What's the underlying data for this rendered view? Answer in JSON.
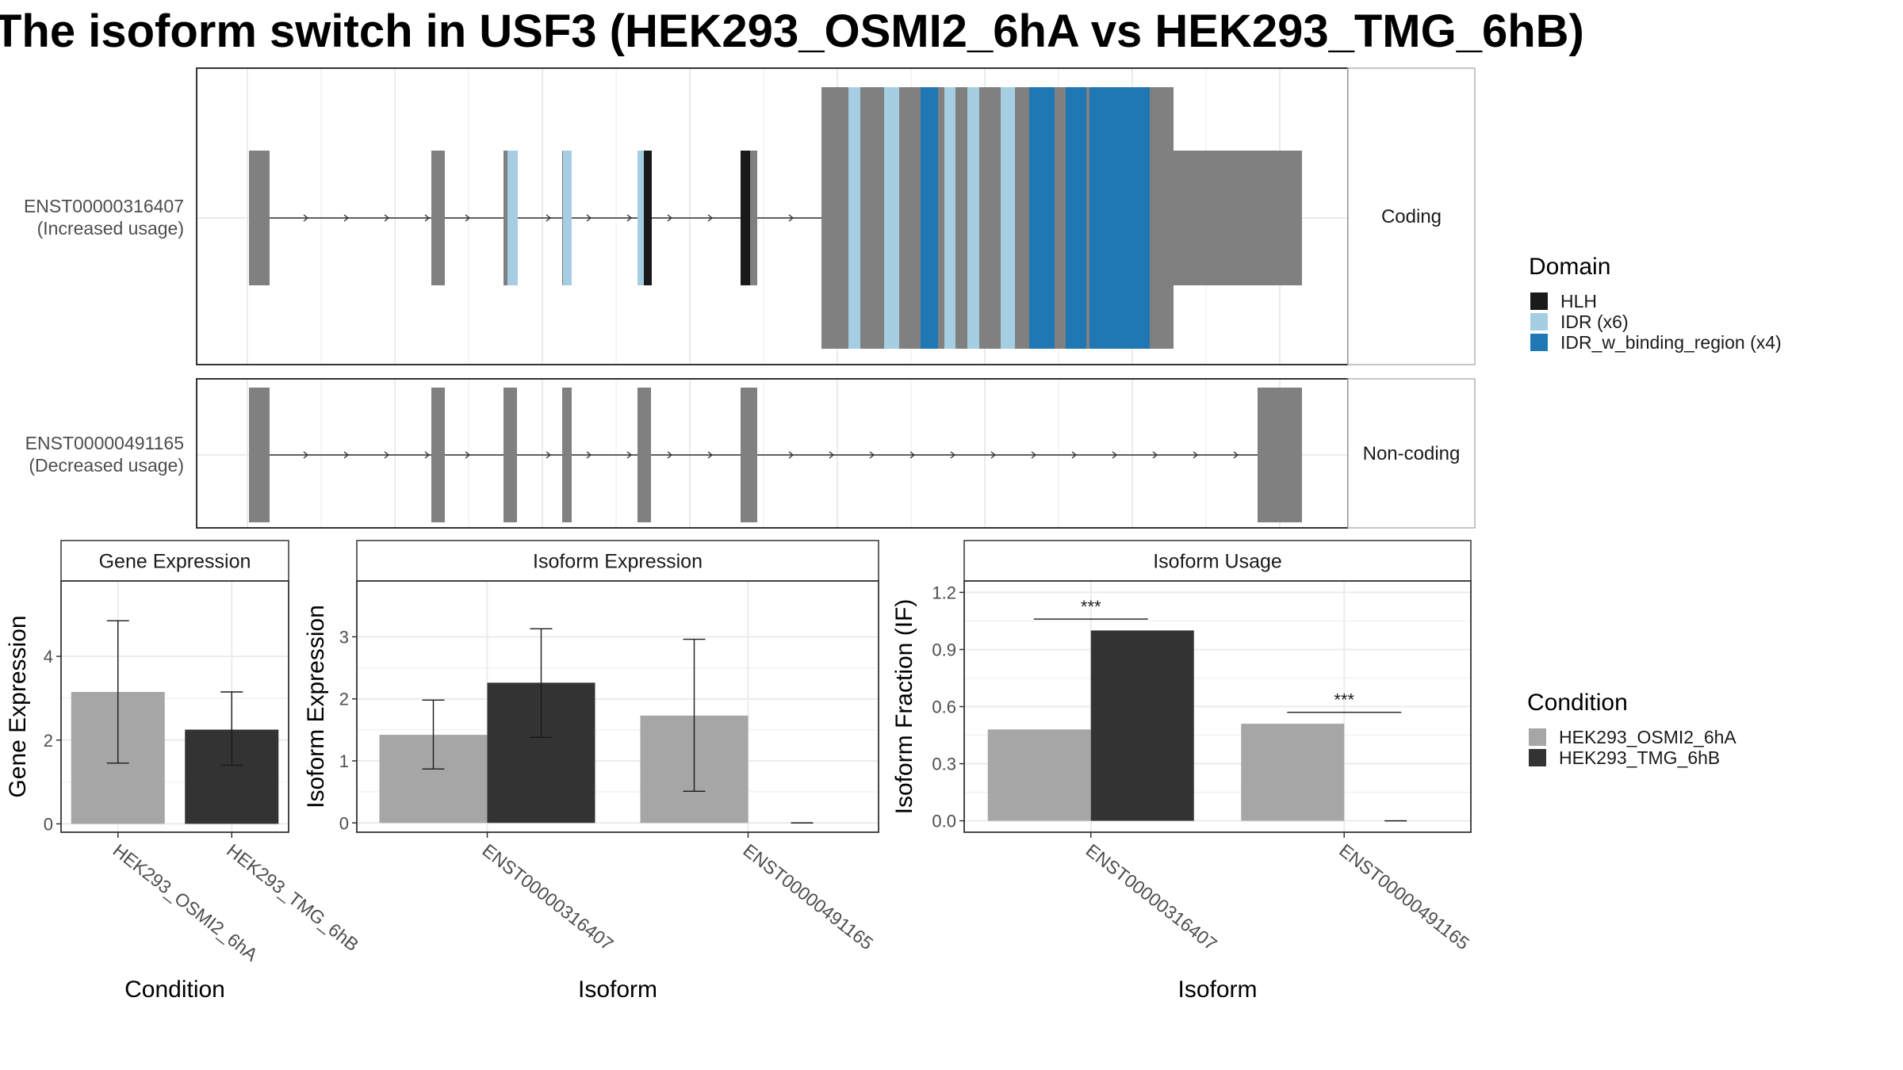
{
  "title": "The isoform switch in USF3 (HEK293_OSMI2_6hA vs HEK293_TMG_6hB)",
  "colors": {
    "exon": "#808080",
    "HLH": "#1a1a1a",
    "IDR": "#a6cee3",
    "IDR_w_binding_region": "#1f78b4",
    "HEK293_OSMI2_6hA": "#a6a6a6",
    "HEK293_TMG_6hB": "#333333",
    "panel_border": "#333333",
    "strip_fill": "#ffffff",
    "grid": "#ebebeb"
  },
  "isoform_panels": [
    {
      "name": "ENST00000316407",
      "sublabel": "(Increased usage)",
      "strip": "Coding"
    },
    {
      "name": "ENST00000491165",
      "sublabel": "(Decreased usage)",
      "strip": "Non-coding"
    }
  ],
  "domain_legend": {
    "title": "Domain",
    "items": [
      {
        "label": "HLH",
        "key": "HLH"
      },
      {
        "label": "IDR (x6)",
        "key": "IDR"
      },
      {
        "label": "IDR_w_binding_region (x4)",
        "key": "IDR_w_binding_region"
      }
    ]
  },
  "condition_legend": {
    "title": "Condition",
    "items": [
      {
        "label": "HEK293_OSMI2_6hA",
        "key": "HEK293_OSMI2_6hA"
      },
      {
        "label": "HEK293_TMG_6hB",
        "key": "HEK293_TMG_6hB"
      }
    ]
  },
  "chart_data": [
    {
      "type": "bar",
      "title": "Gene Expression",
      "xlabel": "Condition",
      "ylabel": "Gene Expression",
      "ylim": [
        -0.2,
        5.8
      ],
      "yticks": [
        0,
        2,
        4
      ],
      "ytick_labels": [
        "0",
        "2",
        "4"
      ],
      "grid": true,
      "categories": [
        "HEK293_OSMI2_6hA",
        "HEK293_TMG_6hB"
      ],
      "series": [
        {
          "name": "HEK293_OSMI2_6hA",
          "values": [
            3.15,
            null
          ],
          "err_low": [
            1.45,
            null
          ],
          "err_high": [
            4.85,
            null
          ]
        },
        {
          "name": "HEK293_TMG_6hB",
          "values": [
            null,
            2.25
          ],
          "err_low": [
            null,
            1.4
          ],
          "err_high": [
            null,
            3.15
          ]
        }
      ]
    },
    {
      "type": "bar",
      "title": "Isoform Expression",
      "xlabel": "Isoform",
      "ylabel": "Isoform Expression",
      "ylim": [
        -0.15,
        3.9
      ],
      "yticks": [
        0,
        1,
        2,
        3
      ],
      "ytick_labels": [
        "0",
        "1",
        "2",
        "3"
      ],
      "grid": true,
      "categories": [
        "ENST00000316407",
        "ENST00000491165"
      ],
      "series": [
        {
          "name": "HEK293_OSMI2_6hA",
          "values": [
            1.42,
            1.73
          ],
          "err_low": [
            0.87,
            0.51
          ],
          "err_high": [
            1.98,
            2.96
          ]
        },
        {
          "name": "HEK293_TMG_6hB",
          "values": [
            2.26,
            0.0
          ],
          "err_low": [
            1.38,
            0.0
          ],
          "err_high": [
            3.13,
            0.0
          ]
        }
      ]
    },
    {
      "type": "bar",
      "title": "Isoform Usage",
      "xlabel": "Isoform",
      "ylabel": "Isoform Fraction (IF)",
      "ylim": [
        -0.06,
        1.26
      ],
      "yticks": [
        0.0,
        0.3,
        0.6,
        0.9,
        1.2
      ],
      "ytick_labels": [
        "0.0",
        "0.3",
        "0.6",
        "0.9",
        "1.2"
      ],
      "grid": true,
      "categories": [
        "ENST00000316407",
        "ENST00000491165"
      ],
      "series": [
        {
          "name": "HEK293_OSMI2_6hA",
          "values": [
            0.48,
            0.51
          ]
        },
        {
          "name": "HEK293_TMG_6hB",
          "values": [
            1.0,
            0.0
          ]
        }
      ],
      "significance": [
        {
          "category": "ENST00000316407",
          "label": "***",
          "y": 1.06
        },
        {
          "category": "ENST00000491165",
          "label": "***",
          "y": 0.57
        }
      ]
    }
  ]
}
